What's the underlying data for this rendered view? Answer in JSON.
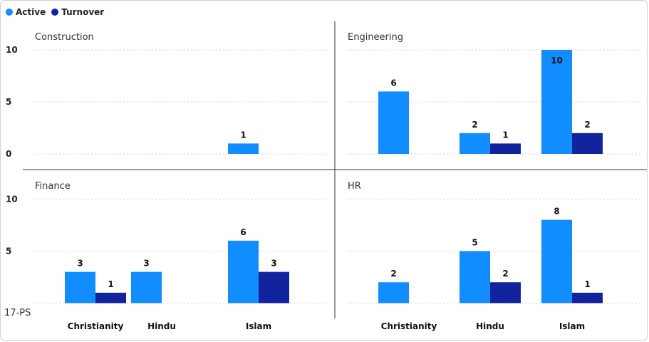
{
  "legend": {
    "items": [
      {
        "label": "Active",
        "color": "#118DFF"
      },
      {
        "label": "Turnover",
        "color": "#12239E"
      }
    ]
  },
  "footer": {
    "label": "17-PS"
  },
  "chart_data": {
    "type": "bar",
    "layout": "small-multiples",
    "categories": [
      "Christianity",
      "Hindu",
      "Islam"
    ],
    "y_ticks": [
      0,
      5,
      10
    ],
    "ylim": [
      0,
      10
    ],
    "grid": true,
    "legend_position": "top-left",
    "panels": [
      {
        "title": "Construction",
        "series": [
          {
            "name": "Active",
            "values": [
              null,
              null,
              1
            ]
          },
          {
            "name": "Turnover",
            "values": [
              null,
              null,
              null
            ]
          }
        ]
      },
      {
        "title": "Engineering",
        "series": [
          {
            "name": "Active",
            "values": [
              6,
              2,
              10
            ]
          },
          {
            "name": "Turnover",
            "values": [
              null,
              1,
              2
            ]
          }
        ]
      },
      {
        "title": "Finance",
        "series": [
          {
            "name": "Active",
            "values": [
              3,
              3,
              6
            ]
          },
          {
            "name": "Turnover",
            "values": [
              1,
              null,
              3
            ]
          }
        ]
      },
      {
        "title": "HR",
        "series": [
          {
            "name": "Active",
            "values": [
              2,
              5,
              8
            ]
          },
          {
            "name": "Turnover",
            "values": [
              null,
              2,
              1
            ]
          }
        ]
      }
    ]
  }
}
